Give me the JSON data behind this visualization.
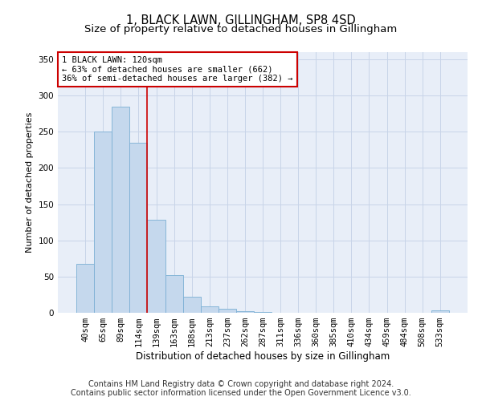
{
  "title": "1, BLACK LAWN, GILLINGHAM, SP8 4SD",
  "subtitle": "Size of property relative to detached houses in Gillingham",
  "xlabel": "Distribution of detached houses by size in Gillingham",
  "ylabel": "Number of detached properties",
  "categories": [
    "40sqm",
    "65sqm",
    "89sqm",
    "114sqm",
    "139sqm",
    "163sqm",
    "188sqm",
    "213sqm",
    "237sqm",
    "262sqm",
    "287sqm",
    "311sqm",
    "336sqm",
    "360sqm",
    "385sqm",
    "410sqm",
    "434sqm",
    "459sqm",
    "484sqm",
    "508sqm",
    "533sqm"
  ],
  "values": [
    68,
    250,
    285,
    235,
    128,
    52,
    22,
    9,
    5,
    2,
    1,
    0,
    0,
    0,
    0,
    0,
    0,
    0,
    0,
    0,
    3
  ],
  "bar_color": "#c5d8ed",
  "bar_edge_color": "#7bafd4",
  "vline_x": 3.5,
  "vline_color": "#cc0000",
  "annotation_text": "1 BLACK LAWN: 120sqm\n← 63% of detached houses are smaller (662)\n36% of semi-detached houses are larger (382) →",
  "annotation_box_color": "#ffffff",
  "annotation_box_edge": "#cc0000",
  "ylim": [
    0,
    360
  ],
  "yticks": [
    0,
    50,
    100,
    150,
    200,
    250,
    300,
    350
  ],
  "grid_color": "#c8d4e8",
  "background_color": "#e8eef8",
  "footer1": "Contains HM Land Registry data © Crown copyright and database right 2024.",
  "footer2": "Contains public sector information licensed under the Open Government Licence v3.0.",
  "title_fontsize": 10.5,
  "subtitle_fontsize": 9.5,
  "xlabel_fontsize": 8.5,
  "ylabel_fontsize": 8,
  "tick_fontsize": 7.5,
  "footer_fontsize": 7,
  "ann_fontsize": 7.5
}
